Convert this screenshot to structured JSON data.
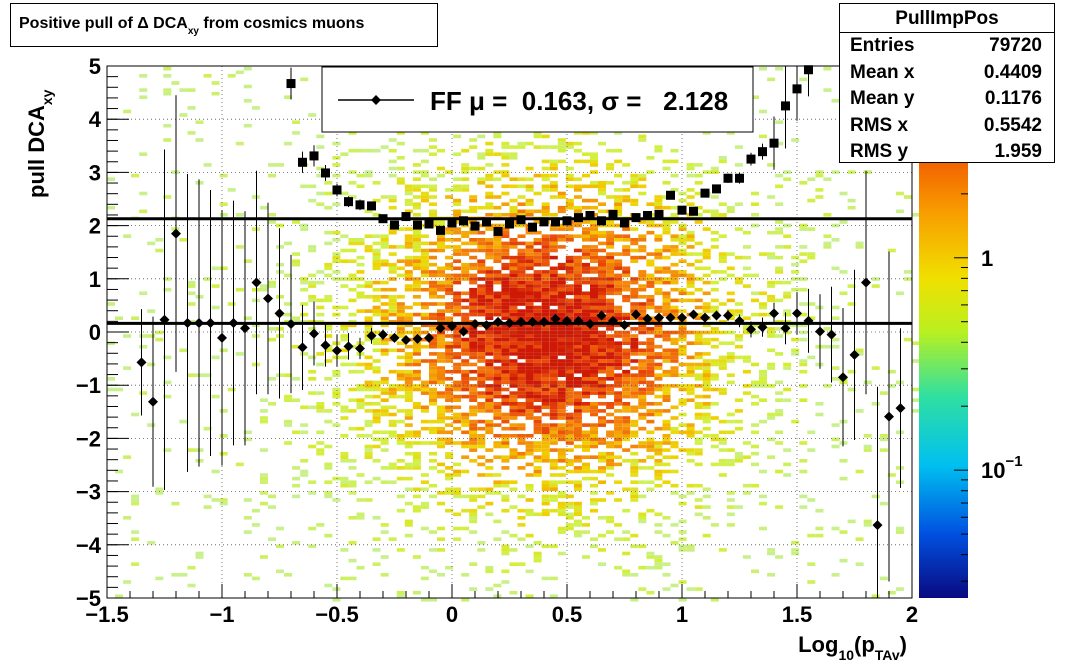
{
  "title": {
    "main": "Positive pull of ",
    "delta": "Δ",
    "mid": " DCA",
    "sub": "xy",
    "rest": " from cosmics muons"
  },
  "stats": {
    "name": "PullImpPos",
    "rows": [
      {
        "label": "Entries",
        "value": "79720"
      },
      {
        "label": "Mean x",
        "value": "0.4409"
      },
      {
        "label": "Mean y",
        "value": "0.1176"
      },
      {
        "label": "RMS x",
        "value": "0.5542"
      },
      {
        "label": "RMS y",
        "value": "1.959"
      }
    ]
  },
  "legend": {
    "entry": "FF μ =  0.163, σ =   2.128"
  },
  "colors": {
    "marker": "#000000",
    "fit_line": "#000000"
  },
  "chart_data": {
    "type": "heatmap",
    "xlabel": {
      "text": "Log",
      "sub1": "10",
      "mid": "(p",
      "sub2": "TAv",
      "end": ")"
    },
    "ylabel": {
      "text": "pull DCA",
      "sub": "xy"
    },
    "xlim": [
      -1.5,
      2.0
    ],
    "ylim": [
      -5,
      5
    ],
    "x_ticks": [
      -1.5,
      -1,
      -0.5,
      0,
      0.5,
      1,
      1.5,
      2
    ],
    "x_tick_labels": [
      "−1.5",
      "−1",
      "−0.5",
      "0",
      "0.5",
      "1",
      "1.5",
      "2"
    ],
    "y_ticks": [
      -5,
      -4,
      -3,
      -2,
      -1,
      0,
      1,
      2,
      3,
      4,
      5
    ],
    "y_tick_labels": [
      "−5",
      "−4",
      "−3",
      "−2",
      "−1",
      "0",
      "1",
      "2",
      "3",
      "4",
      "5"
    ],
    "colorbar": {
      "scale": "log",
      "range": [
        0.025,
        8
      ],
      "labels": [
        {
          "value": 1,
          "text": "1"
        },
        {
          "value": 0.1,
          "text": "10",
          "sup": "−1"
        }
      ]
    },
    "grid": true,
    "fit_lines": [
      {
        "name": "mean",
        "y": 0.163
      },
      {
        "name": "sigma",
        "y": 2.128
      }
    ],
    "mean_points": {
      "x": [
        -1.35,
        -1.3,
        -1.25,
        -1.2,
        -1.15,
        -1.1,
        -1.05,
        -1.0,
        -0.95,
        -0.9,
        -0.85,
        -0.8,
        -0.75,
        -0.7,
        -0.65,
        -0.6,
        -0.55,
        -0.5,
        -0.45,
        -0.4,
        -0.35,
        -0.3,
        -0.25,
        -0.2,
        -0.15,
        -0.1,
        -0.05,
        0.0,
        0.05,
        0.1,
        0.15,
        0.2,
        0.25,
        0.3,
        0.35,
        0.4,
        0.45,
        0.5,
        0.55,
        0.6,
        0.65,
        0.7,
        0.75,
        0.8,
        0.85,
        0.9,
        0.95,
        1.0,
        1.05,
        1.1,
        1.15,
        1.2,
        1.25,
        1.3,
        1.35,
        1.4,
        1.45,
        1.5,
        1.55,
        1.6,
        1.65,
        1.7,
        1.75,
        1.8,
        1.85,
        1.9,
        1.95
      ],
      "y": [
        -0.57,
        -1.31,
        0.23,
        1.85,
        0.17,
        0.17,
        0.17,
        -0.11,
        0.17,
        0.07,
        0.93,
        0.63,
        0.35,
        0.15,
        -0.29,
        -0.03,
        -0.25,
        -0.35,
        -0.27,
        -0.31,
        -0.07,
        -0.05,
        -0.11,
        -0.15,
        -0.13,
        -0.11,
        0.07,
        0.11,
        0.01,
        0.15,
        0.13,
        0.19,
        0.17,
        0.19,
        0.19,
        0.19,
        0.25,
        0.21,
        0.21,
        0.15,
        0.31,
        0.21,
        0.13,
        0.33,
        0.25,
        0.27,
        0.27,
        0.27,
        0.33,
        0.27,
        0.31,
        0.31,
        0.21,
        0.05,
        0.09,
        0.35,
        0.07,
        0.35,
        0.21,
        0.01,
        -0.05,
        -0.85,
        -0.43,
        0.93,
        -3.63,
        -1.59,
        -1.43
      ],
      "err": [
        1.0,
        1.6,
        3.2,
        2.6,
        2.8,
        2.7,
        2.5,
        2.4,
        2.3,
        2.2,
        2.1,
        1.8,
        1.6,
        1.3,
        0.8,
        0.6,
        0.4,
        0.3,
        0.25,
        0.2,
        0.15,
        0.1,
        0.08,
        0.06,
        0.05,
        0.05,
        0.04,
        0.04,
        0.04,
        0.04,
        0.04,
        0.04,
        0.04,
        0.04,
        0.04,
        0.04,
        0.04,
        0.04,
        0.04,
        0.04,
        0.04,
        0.04,
        0.04,
        0.05,
        0.05,
        0.05,
        0.06,
        0.06,
        0.07,
        0.08,
        0.09,
        0.1,
        0.12,
        0.15,
        0.18,
        0.2,
        0.3,
        0.4,
        0.6,
        0.7,
        0.9,
        1.3,
        1.6,
        2.1,
        2.6,
        3.1,
        1.5
      ]
    },
    "sigma_points": {
      "x": [
        -0.7,
        -0.65,
        -0.6,
        -0.55,
        -0.5,
        -0.45,
        -0.4,
        -0.35,
        -0.3,
        -0.25,
        -0.2,
        -0.15,
        -0.1,
        -0.05,
        0.0,
        0.05,
        0.1,
        0.15,
        0.2,
        0.25,
        0.3,
        0.35,
        0.4,
        0.45,
        0.5,
        0.55,
        0.6,
        0.65,
        0.7,
        0.75,
        0.8,
        0.85,
        0.9,
        0.95,
        1.0,
        1.05,
        1.1,
        1.15,
        1.2,
        1.25,
        1.3,
        1.35,
        1.4,
        1.45,
        1.5,
        1.55
      ],
      "y": [
        4.67,
        3.19,
        3.31,
        2.99,
        2.67,
        2.45,
        2.39,
        2.37,
        2.13,
        2.01,
        2.17,
        2.01,
        2.03,
        1.91,
        2.05,
        2.09,
        1.99,
        2.07,
        1.89,
        2.03,
        2.11,
        1.97,
        2.07,
        2.07,
        2.09,
        2.15,
        2.19,
        2.09,
        2.21,
        2.05,
        2.15,
        2.19,
        2.21,
        2.57,
        2.29,
        2.27,
        2.61,
        2.69,
        2.89,
        2.89,
        3.25,
        3.39,
        3.55,
        4.25,
        4.57,
        4.93
      ],
      "err": [
        0.3,
        0.2,
        0.2,
        0.15,
        0.12,
        0.1,
        0.1,
        0.08,
        0.07,
        0.06,
        0.05,
        0.05,
        0.04,
        0.04,
        0.04,
        0.04,
        0.04,
        0.04,
        0.04,
        0.04,
        0.04,
        0.04,
        0.04,
        0.04,
        0.04,
        0.04,
        0.04,
        0.04,
        0.04,
        0.04,
        0.04,
        0.04,
        0.04,
        0.05,
        0.05,
        0.06,
        0.07,
        0.08,
        0.09,
        0.1,
        0.12,
        0.15,
        0.5,
        0.8,
        0.6,
        0.5
      ]
    }
  }
}
